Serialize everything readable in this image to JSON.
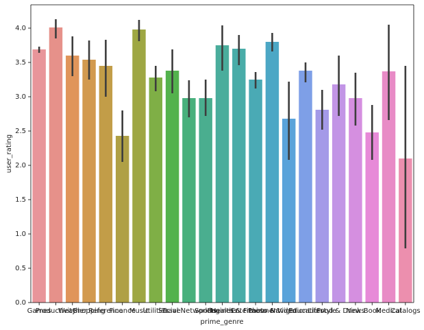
{
  "chart_data": {
    "type": "bar",
    "x_label": "prime_genre",
    "y_label": "user_rating",
    "categories": [
      "Games",
      "Productivity",
      "Weather",
      "Shopping",
      "Reference",
      "Finance",
      "Music",
      "Utilities",
      "Travel",
      "Social Networking",
      "Sports",
      "Business",
      "Health & Fitness",
      "Entertainment",
      "Photo & Video",
      "Navigation",
      "Education",
      "Lifestyle",
      "Food & Drink",
      "News",
      "Book",
      "Medical",
      "Catalogs"
    ],
    "values": [
      3.69,
      4.01,
      3.6,
      3.54,
      3.45,
      2.43,
      3.98,
      3.28,
      3.38,
      2.98,
      2.98,
      3.75,
      3.7,
      3.25,
      3.8,
      2.68,
      3.38,
      2.81,
      3.18,
      2.98,
      2.48,
      3.37,
      2.1
    ],
    "ci_low": [
      3.64,
      3.85,
      3.3,
      3.25,
      3.0,
      2.05,
      3.81,
      3.08,
      3.05,
      2.7,
      2.72,
      3.38,
      3.46,
      3.12,
      3.66,
      2.08,
      3.21,
      2.52,
      2.72,
      2.58,
      2.08,
      2.66,
      0.79
    ],
    "ci_high": [
      3.73,
      4.13,
      3.88,
      3.82,
      3.83,
      2.8,
      4.12,
      3.45,
      3.69,
      3.24,
      3.25,
      4.04,
      3.9,
      3.36,
      3.93,
      3.22,
      3.5,
      3.1,
      3.6,
      3.35,
      2.88,
      4.05,
      3.45
    ],
    "colors": [
      "#e8959a",
      "#e6918a",
      "#e0955a",
      "#d29a4f",
      "#c29d48",
      "#afa045",
      "#9ea743",
      "#7faf46",
      "#53b24d",
      "#48b07c",
      "#4aae8f",
      "#4aad9c",
      "#49aca8",
      "#4aaab5",
      "#4ca7c5",
      "#5aa3da",
      "#7e9fe7",
      "#a49ae8",
      "#c295e6",
      "#d58fe0",
      "#e78ad8",
      "#e88bc6",
      "#ec8fae"
    ],
    "error_color": "#3d3d3d",
    "ylim": [
      0,
      4.34
    ],
    "yticks": [
      {
        "value": 0,
        "label": "0.0"
      },
      {
        "value": 0.5,
        "label": "0.5"
      },
      {
        "value": 1,
        "label": "1.0"
      },
      {
        "value": 1.5,
        "label": "1.5"
      },
      {
        "value": 2,
        "label": "2.0"
      },
      {
        "value": 2.5,
        "label": "2.5"
      },
      {
        "value": 3,
        "label": "3.0"
      },
      {
        "value": 3.5,
        "label": "3.5"
      },
      {
        "value": 4,
        "label": "4.0"
      }
    ],
    "grid": false
  }
}
